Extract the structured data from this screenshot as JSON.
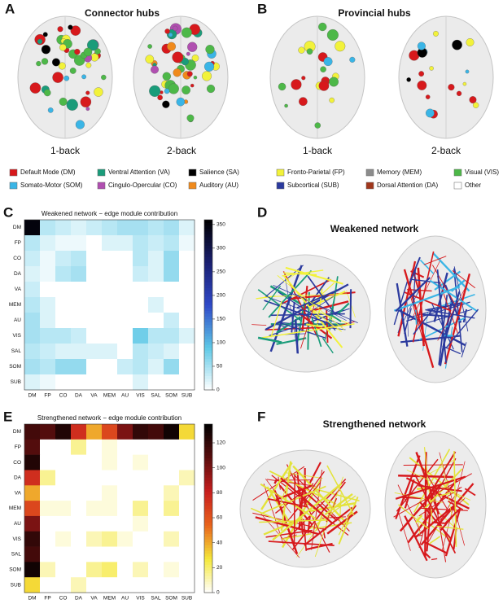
{
  "panels": [
    {
      "label": "A",
      "title": "Connector hubs",
      "captions": [
        "1-back",
        "2-back"
      ]
    },
    {
      "label": "B",
      "title": "Provincial hubs",
      "captions": [
        "1-back",
        "2-back"
      ]
    },
    {
      "label": "C"
    },
    {
      "label": "D",
      "title": "Weakened network"
    },
    {
      "label": "E"
    },
    {
      "label": "F",
      "title": "Strengthened network"
    }
  ],
  "legend": [
    {
      "label": "Default Mode (DM)",
      "color": "#d7191c"
    },
    {
      "label": "Ventral Attention (VA)",
      "color": "#1a9c7a"
    },
    {
      "label": "Salience (SA)",
      "color": "#000000"
    },
    {
      "label": "Fronto-Parietal (FP)",
      "color": "#f2f23a"
    },
    {
      "label": "Memory (MEM)",
      "color": "#8c8c8c"
    },
    {
      "label": "Visual (VIS)",
      "color": "#4db848"
    },
    {
      "label": "Somato-Motor (SOM)",
      "color": "#3ab5e6"
    },
    {
      "label": "Cingulo-Opercular (CO)",
      "color": "#b04fb0"
    },
    {
      "label": "Auditory (AU)",
      "color": "#f08a1c"
    },
    {
      "label": "Subcortical (SUB)",
      "color": "#2b3a9e"
    },
    {
      "label": "Dorsal Attention (DA)",
      "color": "#a0371c"
    },
    {
      "label": "Other",
      "color": "#ffffff"
    }
  ],
  "chart_data": [
    {
      "type": "heatmap",
      "title": "Weakened network − edge module contribution",
      "categories": [
        "DM",
        "FP",
        "CO",
        "DA",
        "VA",
        "MEM",
        "AU",
        "VIS",
        "SAL",
        "SOM",
        "SUB"
      ],
      "z": [
        [
          350,
          40,
          30,
          20,
          30,
          40,
          50,
          50,
          40,
          50,
          20
        ],
        [
          40,
          20,
          10,
          10,
          0,
          20,
          20,
          40,
          30,
          40,
          10
        ],
        [
          30,
          10,
          30,
          40,
          0,
          0,
          0,
          40,
          20,
          60,
          0
        ],
        [
          20,
          10,
          40,
          50,
          0,
          0,
          0,
          30,
          20,
          60,
          0
        ],
        [
          30,
          0,
          0,
          0,
          0,
          0,
          0,
          0,
          0,
          0,
          0
        ],
        [
          40,
          20,
          0,
          0,
          0,
          0,
          0,
          0,
          20,
          0,
          0
        ],
        [
          50,
          20,
          0,
          0,
          0,
          0,
          0,
          0,
          0,
          30,
          0
        ],
        [
          50,
          40,
          40,
          30,
          0,
          0,
          0,
          80,
          40,
          40,
          20
        ],
        [
          40,
          30,
          20,
          20,
          20,
          20,
          0,
          40,
          30,
          20,
          0
        ],
        [
          50,
          40,
          60,
          60,
          0,
          0,
          30,
          40,
          20,
          60,
          0
        ],
        [
          20,
          10,
          0,
          0,
          0,
          0,
          0,
          20,
          0,
          0,
          0
        ]
      ],
      "colorscale": [
        "#ffffff",
        "#5ec8e6",
        "#2f49c8",
        "#1a1f70",
        "#000000"
      ],
      "zlim": [
        0,
        360
      ],
      "zticks": [
        0,
        50,
        100,
        150,
        200,
        250,
        300,
        350
      ]
    },
    {
      "type": "heatmap",
      "title": "Strengthened network − edge module contribution",
      "categories": [
        "DM",
        "FP",
        "CO",
        "DA",
        "VA",
        "MEM",
        "AU",
        "VIS",
        "SAL",
        "SOM",
        "SUB"
      ],
      "z": [
        [
          115,
          110,
          125,
          75,
          40,
          65,
          100,
          120,
          115,
          130,
          30
        ],
        [
          110,
          0,
          0,
          15,
          0,
          5,
          0,
          0,
          0,
          0,
          0
        ],
        [
          125,
          0,
          0,
          0,
          0,
          5,
          0,
          5,
          0,
          0,
          0
        ],
        [
          75,
          15,
          0,
          0,
          0,
          0,
          0,
          0,
          0,
          0,
          10
        ],
        [
          40,
          0,
          0,
          0,
          0,
          5,
          0,
          0,
          0,
          10,
          0
        ],
        [
          65,
          5,
          5,
          0,
          5,
          5,
          0,
          15,
          0,
          15,
          0
        ],
        [
          100,
          0,
          0,
          0,
          0,
          0,
          0,
          5,
          0,
          0,
          0
        ],
        [
          120,
          0,
          5,
          0,
          10,
          15,
          5,
          0,
          0,
          10,
          0
        ],
        [
          115,
          0,
          0,
          0,
          0,
          0,
          0,
          0,
          0,
          0,
          0
        ],
        [
          130,
          10,
          0,
          0,
          15,
          20,
          0,
          10,
          0,
          5,
          0
        ],
        [
          30,
          0,
          0,
          10,
          0,
          0,
          0,
          0,
          0,
          0,
          0
        ]
      ],
      "colorscale": [
        "#ffffff",
        "#f5e83a",
        "#e8641c",
        "#c81e1e",
        "#5a0e0e",
        "#000000"
      ],
      "zlim": [
        0,
        135
      ],
      "zticks": [
        0,
        20,
        40,
        60,
        80,
        100,
        120
      ]
    }
  ]
}
